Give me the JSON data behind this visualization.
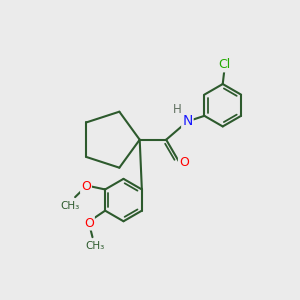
{
  "background_color": "#ebebeb",
  "bond_color": "#2d5a2d",
  "bond_width": 1.5,
  "atom_colors": {
    "N": "#1a1aff",
    "O": "#ff0000",
    "Cl": "#22aa00",
    "H": "#607060",
    "C": "#2d5a2d"
  }
}
